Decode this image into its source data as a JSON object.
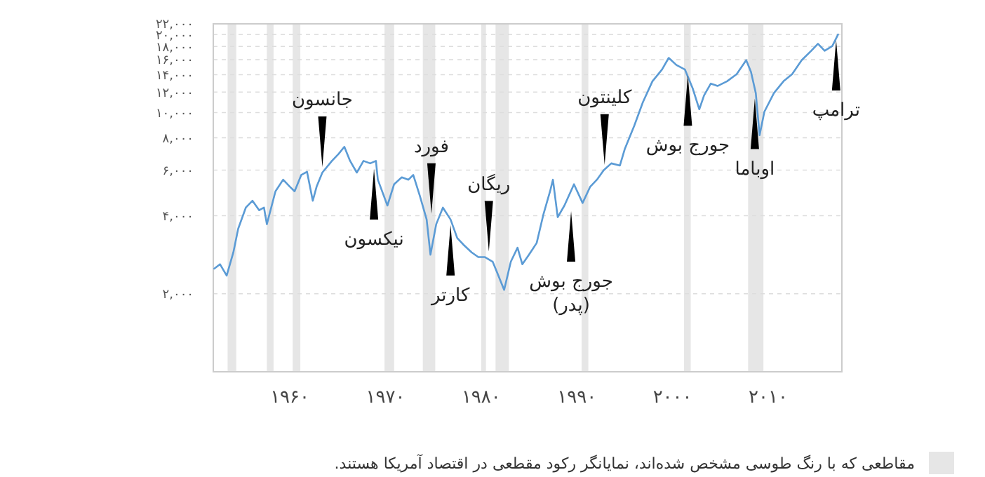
{
  "chart_data": {
    "type": "line",
    "log": true,
    "grid": "y",
    "xlim": [
      1952,
      2017.7
    ],
    "xticks": [
      {
        "value": 1960,
        "label": "۱۹۶۰"
      },
      {
        "value": 1970,
        "label": "۱۹۷۰"
      },
      {
        "value": 1980,
        "label": "۱۹۸۰"
      },
      {
        "value": 1990,
        "label": "۱۹۹۰"
      },
      {
        "value": 2000,
        "label": "۲۰۰۰"
      },
      {
        "value": 2010,
        "label": "۲۰۱۰"
      }
    ],
    "ylim": [
      1000,
      22000
    ],
    "yticks": [
      {
        "value": 2000,
        "label": "۲,۰۰۰"
      },
      {
        "value": 4000,
        "label": "۴,۰۰۰"
      },
      {
        "value": 6000,
        "label": "۶,۰۰۰"
      },
      {
        "value": 8000,
        "label": "۸,۰۰۰"
      },
      {
        "value": 10000,
        "label": "۱۰,۰۰۰"
      },
      {
        "value": 12000,
        "label": "۱۲,۰۰۰"
      },
      {
        "value": 14000,
        "label": "۱۴,۰۰۰"
      },
      {
        "value": 16000,
        "label": "۱۶,۰۰۰"
      },
      {
        "value": 18000,
        "label": "۱۸,۰۰۰"
      },
      {
        "value": 20000,
        "label": "۲۰,۰۰۰"
      },
      {
        "value": 22000,
        "label": "۲۲,۰۰۰"
      }
    ],
    "x": [
      1952.1,
      1952.7,
      1953.4,
      1954.1,
      1954.6,
      1955.4,
      1956.1,
      1956.8,
      1957.3,
      1957.6,
      1958.5,
      1959.3,
      1960.0,
      1960.5,
      1961.2,
      1961.8,
      1962.4,
      1962.8,
      1963.4,
      1964.4,
      1965.1,
      1965.7,
      1966.3,
      1967.0,
      1967.7,
      1968.4,
      1969.0,
      1969.2,
      1970.2,
      1970.9,
      1971.7,
      1972.4,
      1972.9,
      1973.6,
      1974.3,
      1974.7,
      1975.3,
      1976.0,
      1976.8,
      1977.5,
      1978.2,
      1979.0,
      1979.7,
      1980.4,
      1981.2,
      1981.6,
      1982.4,
      1983.1,
      1983.8,
      1984.3,
      1985.0,
      1985.8,
      1986.5,
      1987.2,
      1987.5,
      1988.0,
      1988.7,
      1989.7,
      1990.6,
      1991.4,
      1992.1,
      1992.8,
      1993.6,
      1994.5,
      1995.0,
      1996.0,
      1996.9,
      1997.9,
      1998.9,
      1999.6,
      2000.4,
      2001.3,
      2002.1,
      2002.8,
      2003.3,
      2004.0,
      2004.7,
      2005.7,
      2006.7,
      2007.7,
      2008.2,
      2008.7,
      2009.1,
      2009.6,
      2010.6,
      2011.6,
      2012.5,
      2013.5,
      2014.5,
      2015.2,
      2015.9,
      2016.7,
      2017.3
    ],
    "series": [
      {
        "color": "#5b9bd5",
        "values": [
          2500,
          2600,
          2350,
          2890,
          3560,
          4300,
          4570,
          4200,
          4300,
          3710,
          4970,
          5510,
          5180,
          4970,
          5750,
          5910,
          4570,
          5180,
          5870,
          6510,
          6930,
          7380,
          6510,
          5870,
          6510,
          6370,
          6510,
          5510,
          4380,
          5290,
          5630,
          5510,
          5750,
          4760,
          3870,
          2830,
          3710,
          4300,
          3870,
          3280,
          3080,
          2890,
          2770,
          2770,
          2660,
          2450,
          2070,
          2660,
          3010,
          2600,
          2830,
          3140,
          4040,
          4970,
          5510,
          3950,
          4380,
          5290,
          4480,
          5180,
          5510,
          5990,
          6370,
          6250,
          7220,
          8900,
          10960,
          13210,
          14660,
          16260,
          15270,
          14660,
          12420,
          10300,
          11660,
          12940,
          12670,
          13210,
          14070,
          15940,
          14350,
          11900,
          8180,
          10080,
          11900,
          13210,
          14070,
          15940,
          17320,
          18430,
          17320,
          18060,
          20030
        ]
      }
    ],
    "bands": [
      {
        "axis": "x",
        "from": 1953.5,
        "to": 1954.4,
        "color": "#e6e6e6"
      },
      {
        "axis": "x",
        "from": 1957.6,
        "to": 1958.3,
        "color": "#e6e6e6"
      },
      {
        "axis": "x",
        "from": 1960.3,
        "to": 1961.1,
        "color": "#e6e6e6"
      },
      {
        "axis": "x",
        "from": 1969.9,
        "to": 1970.9,
        "color": "#e6e6e6"
      },
      {
        "axis": "x",
        "from": 1973.9,
        "to": 1975.2,
        "color": "#e6e6e6"
      },
      {
        "axis": "x",
        "from": 1980.0,
        "to": 1980.5,
        "color": "#e6e6e6"
      },
      {
        "axis": "x",
        "from": 1981.5,
        "to": 1982.9,
        "color": "#e6e6e6"
      },
      {
        "axis": "x",
        "from": 1990.5,
        "to": 1991.2,
        "color": "#e6e6e6"
      },
      {
        "axis": "x",
        "from": 2001.2,
        "to": 2001.9,
        "color": "#e6e6e6"
      },
      {
        "axis": "x",
        "from": 2007.9,
        "to": 2009.5,
        "color": "#e6e6e6"
      }
    ],
    "annotations": [
      {
        "text": "جانسون",
        "x": 1963.4,
        "y": 5870
      },
      {
        "text": "نیکسون",
        "x": 1968.8,
        "y": 6370
      },
      {
        "text": "فورد",
        "x": 1974.8,
        "y": 3870
      },
      {
        "text": "کارتر",
        "x": 1976.8,
        "y": 3870
      },
      {
        "text": "ریگان",
        "x": 1980.8,
        "y": 2770
      },
      {
        "text": "جورج بوش\n(پدر)",
        "x": 1989.4,
        "y": 4380
      },
      {
        "text": "کلینتون",
        "x": 1992.9,
        "y": 5990
      },
      {
        "text": "جورج بوش",
        "x": 2001.6,
        "y": 14660
      },
      {
        "text": "اوباما",
        "x": 2008.6,
        "y": 11900
      },
      {
        "text": "ترامپ",
        "x": 2017.1,
        "y": 20030
      },
      "مقاطعی که با رنگ طوسی مشخص شده‌اند، نمایانگر رکود مقطعی در اقتصاد آمریکا هستند."
    ]
  }
}
